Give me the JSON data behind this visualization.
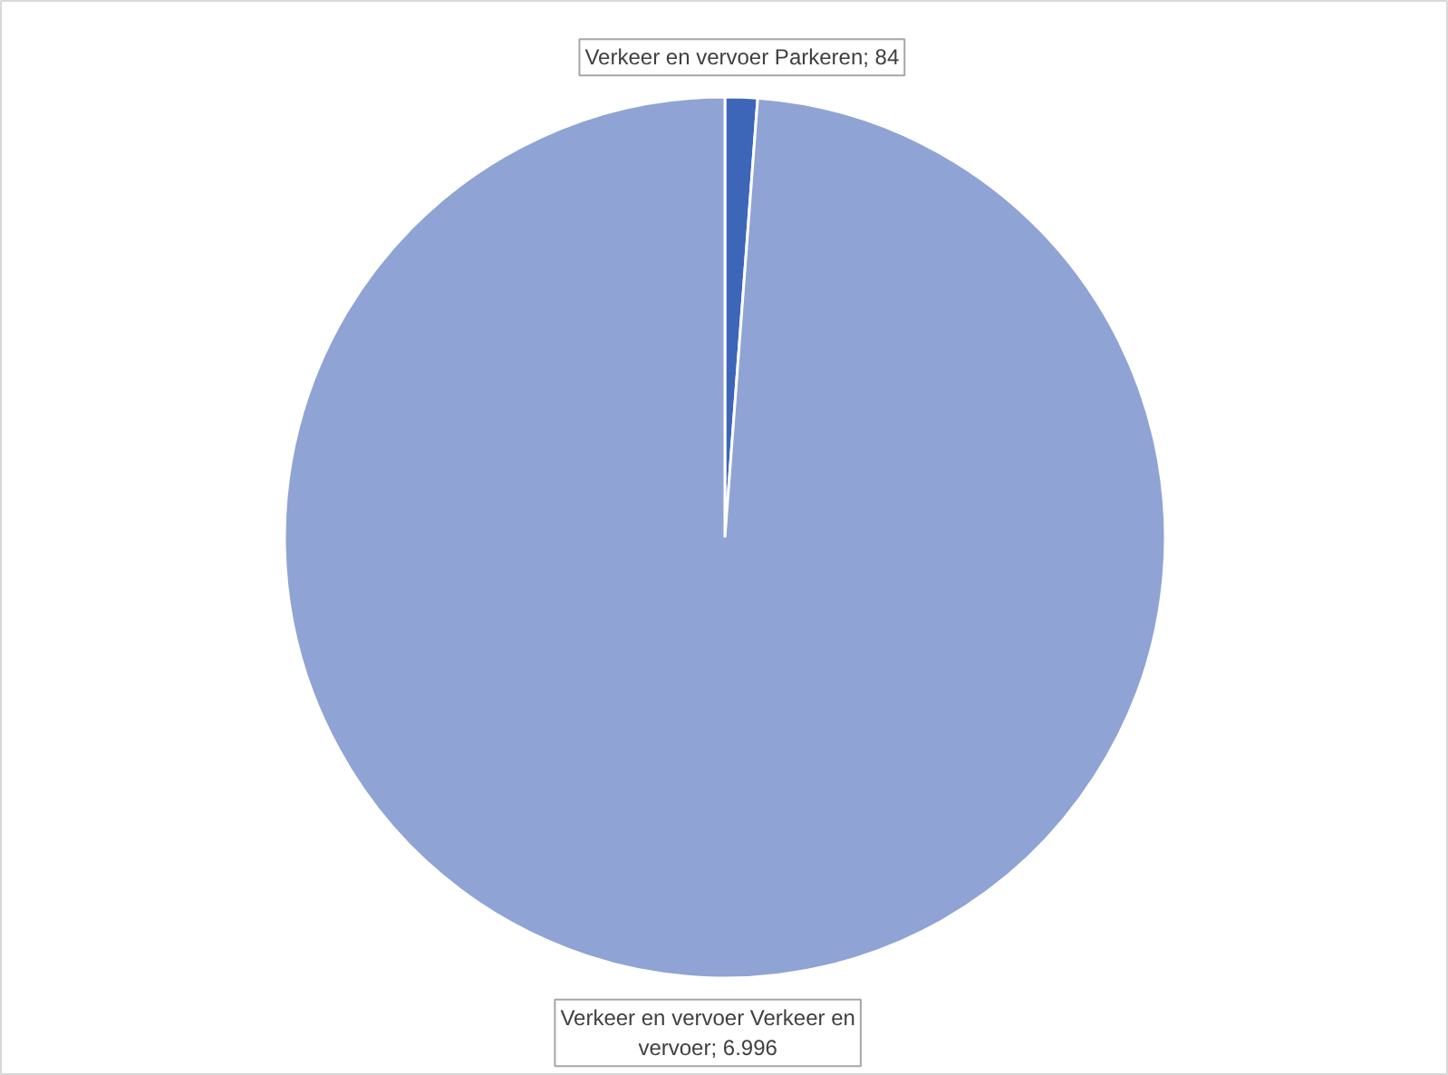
{
  "chart_data": {
    "type": "pie",
    "categories": [
      "Verkeer en vervoer Parkeren",
      "Verkeer en vervoer Verkeer en vervoer"
    ],
    "values": [
      84,
      6996
    ],
    "colors": [
      "#3d66b9",
      "#8fa3d4"
    ],
    "value_labels": [
      "84",
      "6.996"
    ]
  }
}
